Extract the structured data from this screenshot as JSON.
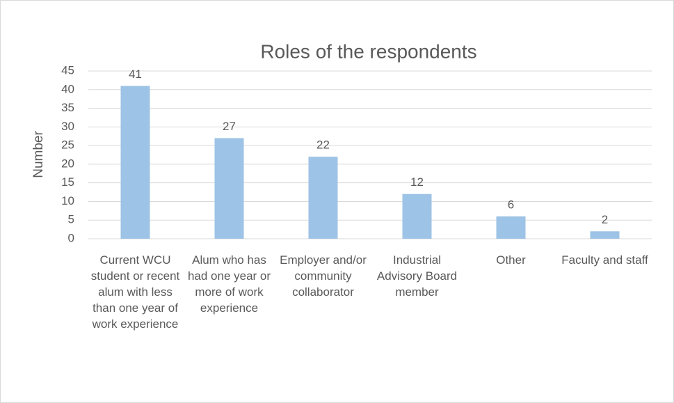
{
  "chart_data": {
    "type": "bar",
    "title": "Roles of the respondents",
    "y_label": "Number",
    "categories": [
      "Current WCU student or recent alum with less than one year of work experience",
      "Alum who has had one year or more of work experience",
      "Employer and/or community collaborator",
      "Industrial Advisory Board member",
      "Other",
      "Faculty and staff"
    ],
    "values": [
      41,
      27,
      22,
      12,
      6,
      2
    ],
    "color": "#9dc3e6",
    "ylim": [
      0,
      45
    ],
    "yticks": [
      0,
      5,
      10,
      15,
      20,
      25,
      30,
      35,
      40,
      45
    ],
    "grid": true
  }
}
